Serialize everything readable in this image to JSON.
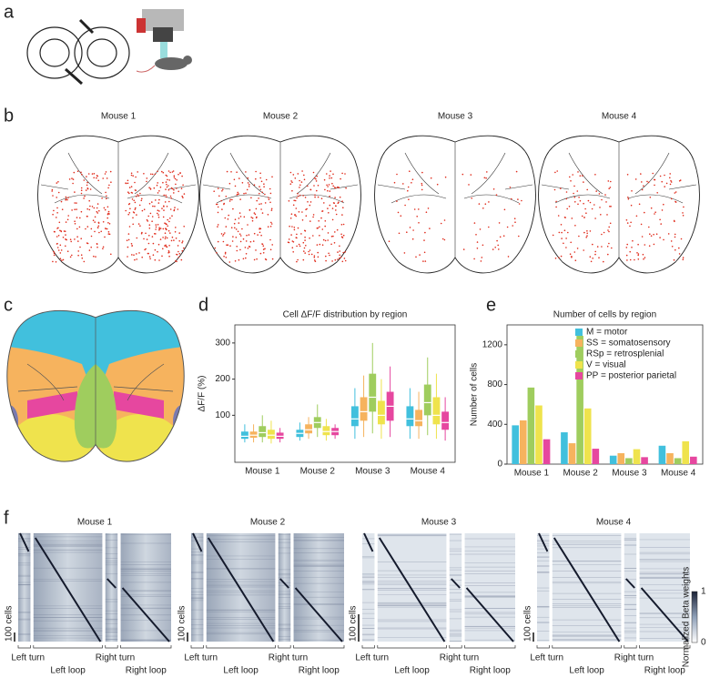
{
  "panel_labels": [
    "a",
    "b",
    "c",
    "d",
    "e",
    "f"
  ],
  "brain_maps": {
    "titles": [
      "Mouse 1",
      "Mouse 2",
      "Mouse 3",
      "Mouse 4"
    ]
  },
  "heatmaps": {
    "titles": [
      "Mouse 1",
      "Mouse 2",
      "Mouse 3",
      "Mouse 4"
    ],
    "trial_types": [
      "Left turn",
      "Left loop",
      "Right turn",
      "Right loop"
    ],
    "scale_label": "100 cells",
    "colorbar_label": "Normalized Beta weights",
    "colorbar_ticks": [
      0,
      1
    ]
  },
  "chart_data": [
    {
      "type": "box",
      "title": "Cell ΔF/F distribution by region",
      "y_label": "ΔF/F (%)",
      "categories": [
        "Mouse 1",
        "Mouse 2",
        "Mouse 3",
        "Mouse 4"
      ],
      "series": [
        {
          "color": "#41c0dd",
          "low": [
            25,
            30,
            35,
            35
          ],
          "q1": [
            35,
            40,
            70,
            70
          ],
          "median": [
            42,
            50,
            90,
            90
          ],
          "q3": [
            55,
            60,
            125,
            125
          ],
          "high": [
            75,
            80,
            175,
            175
          ]
        },
        {
          "color": "#f6b35e",
          "low": [
            25,
            35,
            40,
            35
          ],
          "q1": [
            38,
            50,
            85,
            70
          ],
          "median": [
            45,
            60,
            110,
            85
          ],
          "q3": [
            55,
            75,
            150,
            115
          ],
          "high": [
            75,
            95,
            210,
            165
          ]
        },
        {
          "color": "#9fcd5e",
          "low": [
            25,
            40,
            50,
            45
          ],
          "q1": [
            40,
            65,
            110,
            100
          ],
          "median": [
            52,
            80,
            150,
            135
          ],
          "q3": [
            70,
            95,
            215,
            185
          ],
          "high": [
            100,
            130,
            300,
            260
          ]
        },
        {
          "color": "#efe34d",
          "low": [
            22,
            30,
            35,
            35
          ],
          "q1": [
            35,
            45,
            75,
            75
          ],
          "median": [
            45,
            55,
            100,
            100
          ],
          "q3": [
            60,
            70,
            140,
            150
          ],
          "high": [
            85,
            90,
            200,
            215
          ]
        },
        {
          "color": "#e6479f",
          "low": [
            25,
            35,
            40,
            30
          ],
          "q1": [
            35,
            45,
            85,
            60
          ],
          "median": [
            42,
            55,
            125,
            80
          ],
          "q3": [
            52,
            65,
            165,
            110
          ],
          "high": [
            65,
            75,
            235,
            150
          ]
        }
      ],
      "ylim": [
        -30,
        350
      ],
      "yticks": [
        100,
        200,
        300
      ]
    },
    {
      "type": "bar",
      "title": "Number of cells by region",
      "y_label": "Number of cells",
      "categories": [
        "Mouse 1",
        "Mouse 2",
        "Mouse 3",
        "Mouse 4"
      ],
      "series": [
        {
          "name": "M = motor",
          "color": "#41c0dd",
          "values": [
            390,
            320,
            85,
            185
          ]
        },
        {
          "name": "SS = somatosensory",
          "color": "#f6b35e",
          "values": [
            440,
            210,
            110,
            110
          ]
        },
        {
          "name": "RSp = retrosplenial",
          "color": "#9fcd5e",
          "values": [
            770,
            1290,
            60,
            60
          ]
        },
        {
          "name": "V = visual",
          "color": "#efe34d",
          "values": [
            590,
            560,
            150,
            230
          ]
        },
        {
          "name": "PP = posterior parietal",
          "color": "#e6479f",
          "values": [
            250,
            155,
            70,
            75
          ]
        }
      ],
      "ylim": [
        0,
        1400
      ],
      "yticks": [
        0,
        400,
        800,
        1200
      ],
      "legend": "upper right"
    }
  ]
}
